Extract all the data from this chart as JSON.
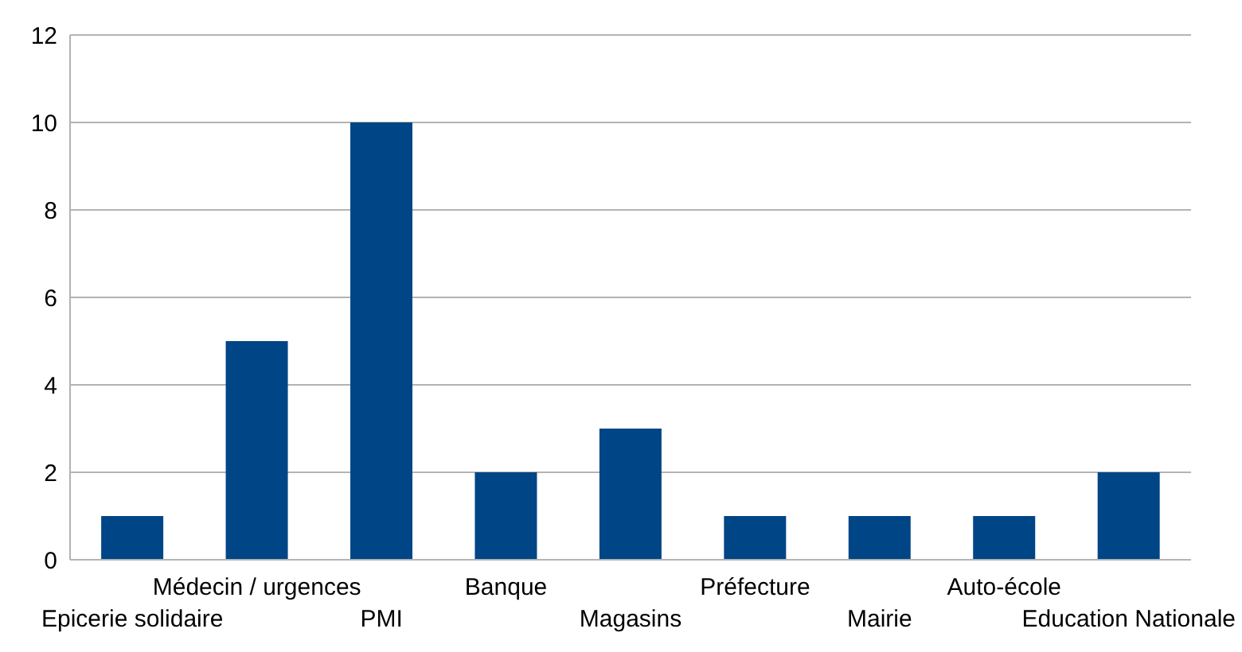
{
  "chart_data": {
    "type": "bar",
    "categories": [
      "Epicerie solidaire",
      "Médecin / urgences",
      "PMI",
      "Banque",
      "Magasins",
      "Préfecture",
      "Mairie",
      "Auto-école",
      "Education Nationale"
    ],
    "values": [
      1,
      5,
      10,
      2,
      3,
      1,
      1,
      1,
      2
    ],
    "color": "#004586",
    "ylim": [
      0,
      12
    ],
    "yticks": [
      0,
      2,
      4,
      6,
      8,
      10,
      12
    ],
    "grid": "y"
  }
}
